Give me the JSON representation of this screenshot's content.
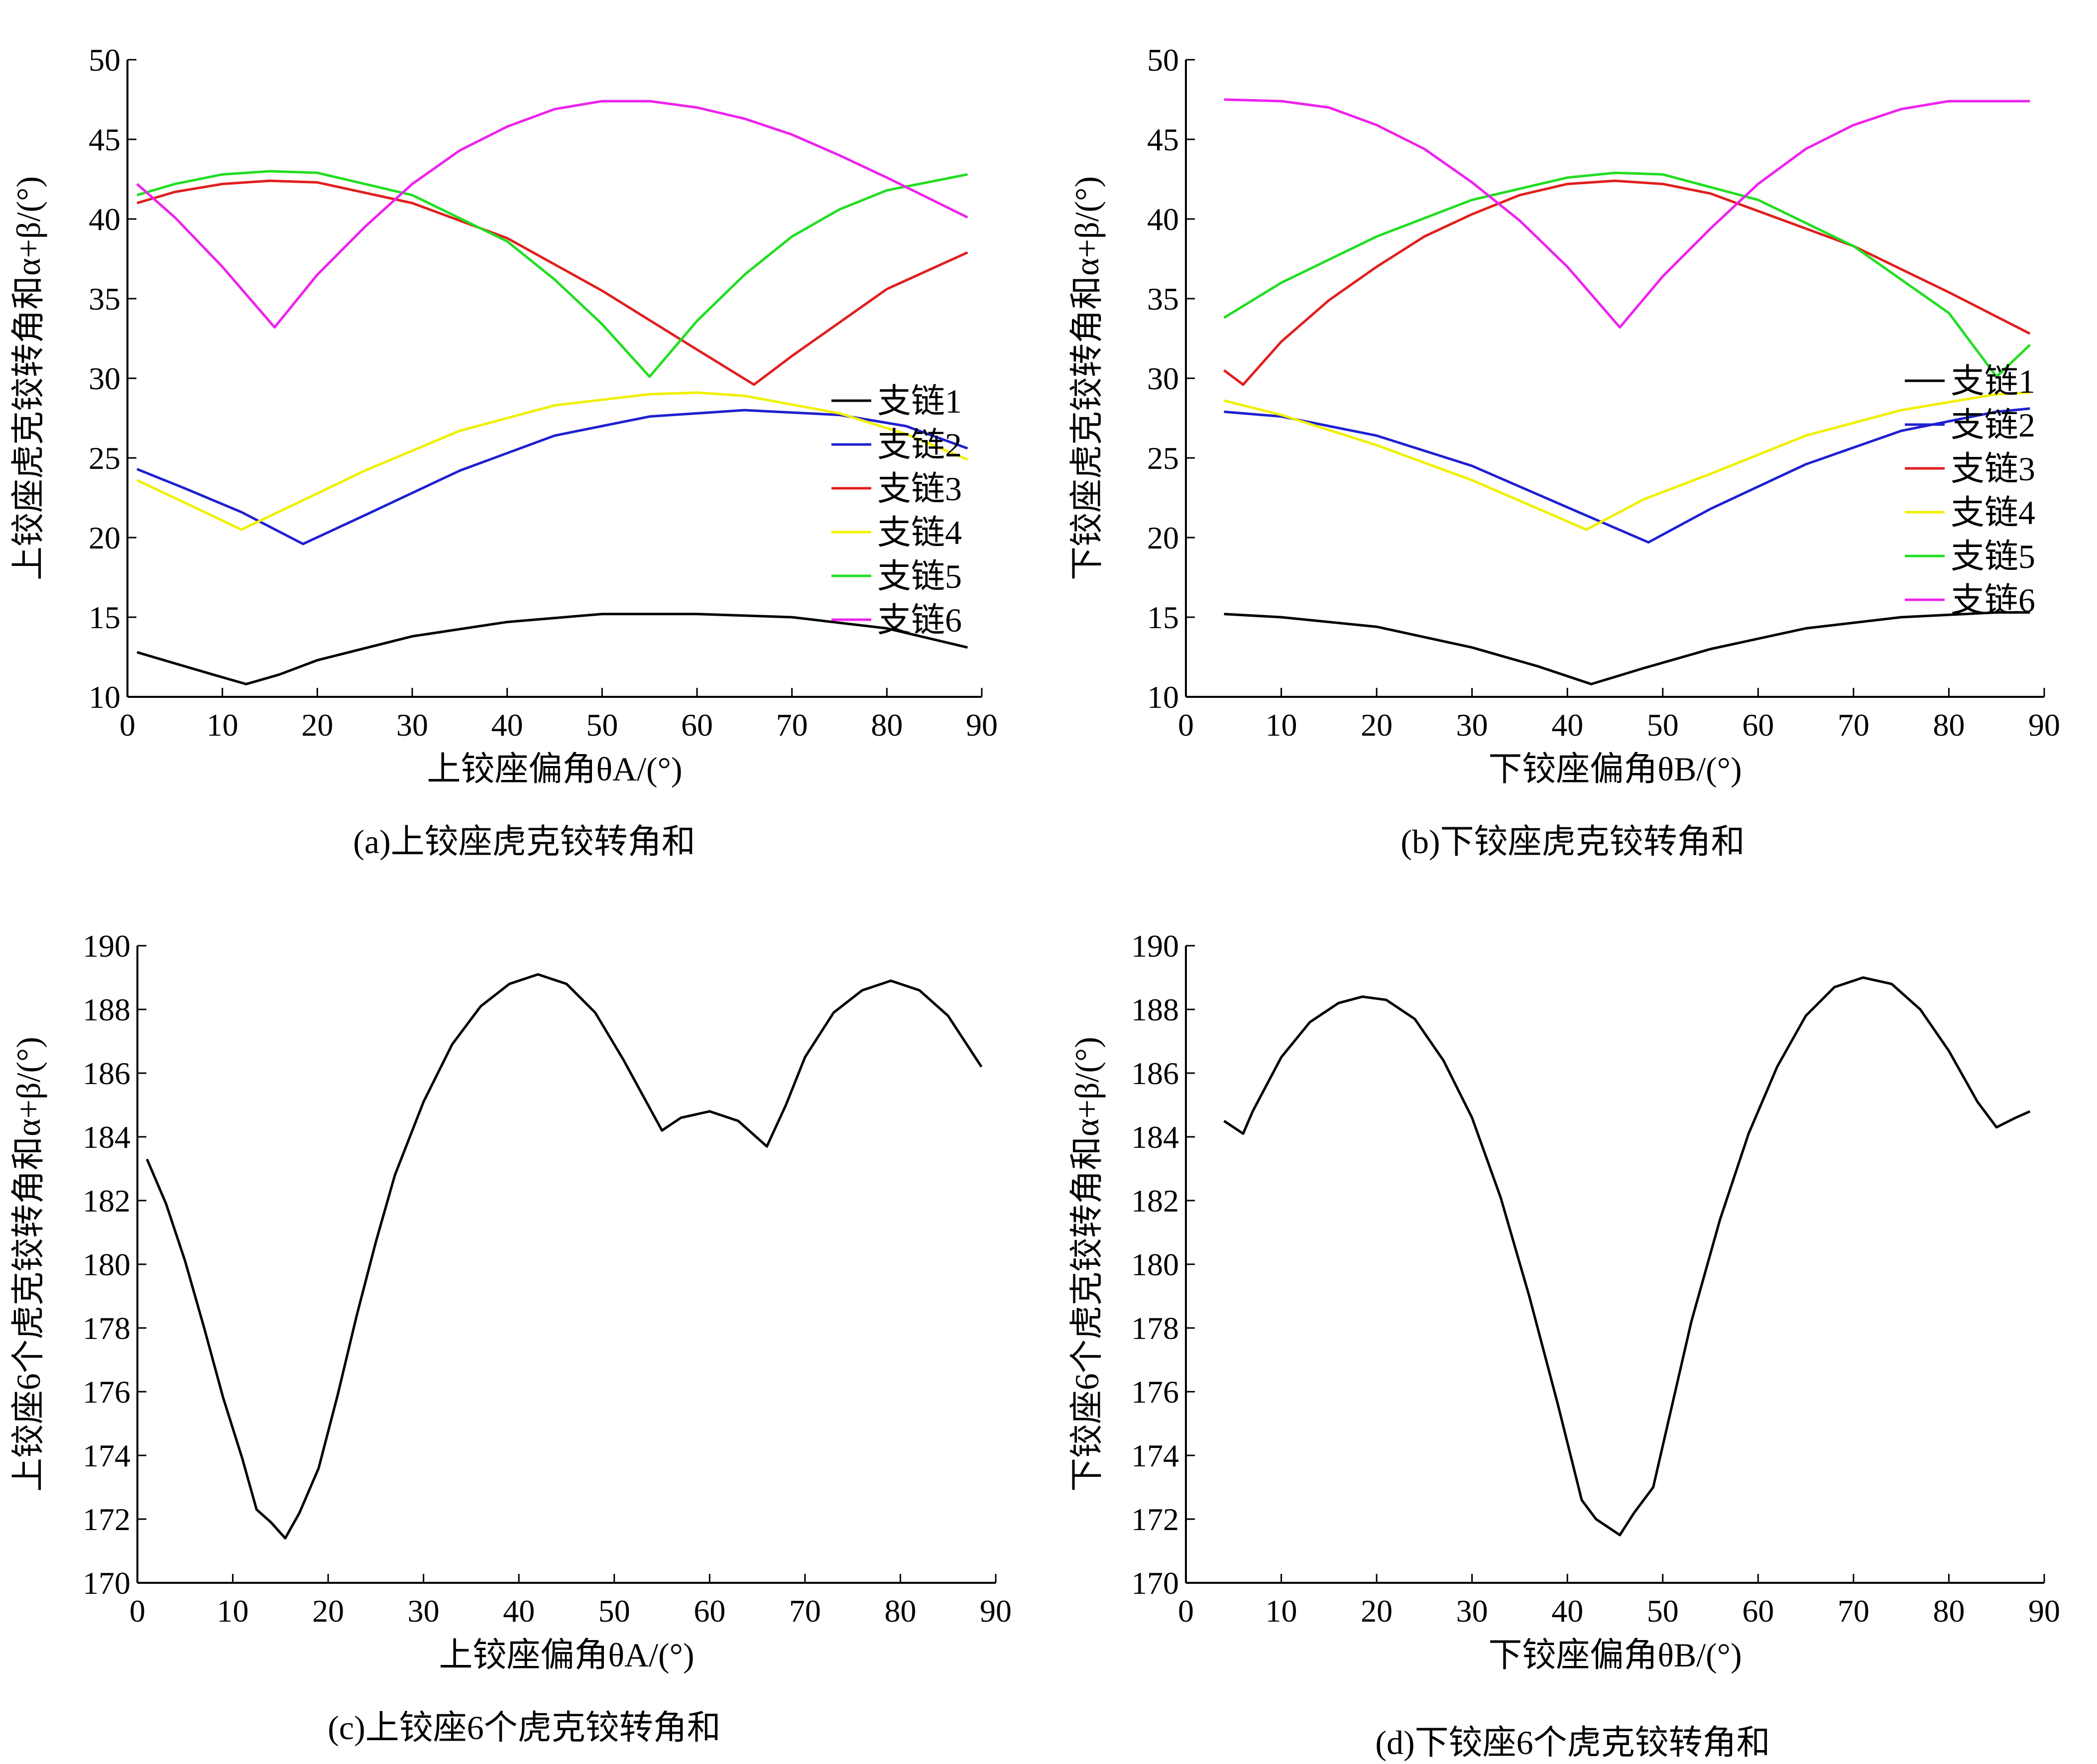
{
  "colors": {
    "axis": "#000000",
    "series": [
      "#000000",
      "#1f1fd0",
      "#e01f1f",
      "#f0f000",
      "#22dd22",
      "#ee22ee"
    ]
  },
  "chart_data": [
    {
      "id": "a",
      "type": "line",
      "caption": "(a)上铰座虎克铰转角和",
      "xlabel": "上铰座偏角θA/(°)",
      "ylabel": "上铰座虎克铰转角和α+β/(°)",
      "xlim": [
        0,
        90
      ],
      "ylim": [
        10,
        50
      ],
      "xticks": [
        0,
        10,
        20,
        30,
        40,
        50,
        60,
        70,
        80,
        90
      ],
      "yticks": [
        10,
        15,
        20,
        25,
        30,
        35,
        40,
        45,
        50
      ],
      "grid": false,
      "legend": "right",
      "series": [
        {
          "name": "支链1",
          "points": [
            [
              1,
              12.8
            ],
            [
              5,
              12.1
            ],
            [
              9,
              11.4
            ],
            [
              12.5,
              10.8
            ],
            [
              16,
              11.4
            ],
            [
              20,
              12.3
            ],
            [
              30,
              13.8
            ],
            [
              40,
              14.7
            ],
            [
              50,
              15.2
            ],
            [
              60,
              15.2
            ],
            [
              70,
              15.0
            ],
            [
              80,
              14.3
            ],
            [
              88.5,
              13.1
            ]
          ]
        },
        {
          "name": "支链2",
          "points": [
            [
              1,
              24.3
            ],
            [
              6,
              23.1
            ],
            [
              12,
              21.6
            ],
            [
              18.5,
              19.6
            ],
            [
              25,
              21.4
            ],
            [
              35,
              24.2
            ],
            [
              45,
              26.4
            ],
            [
              55,
              27.6
            ],
            [
              65,
              28.0
            ],
            [
              75,
              27.7
            ],
            [
              82,
              27.0
            ],
            [
              88.5,
              25.6
            ]
          ]
        },
        {
          "name": "支链3",
          "points": [
            [
              1,
              41.0
            ],
            [
              5,
              41.7
            ],
            [
              10,
              42.2
            ],
            [
              15,
              42.4
            ],
            [
              20,
              42.3
            ],
            [
              30,
              41.0
            ],
            [
              40,
              38.8
            ],
            [
              50,
              35.5
            ],
            [
              60,
              31.8
            ],
            [
              66,
              29.6
            ],
            [
              70,
              31.4
            ],
            [
              75,
              33.5
            ],
            [
              80,
              35.6
            ],
            [
              88.5,
              37.9
            ]
          ]
        },
        {
          "name": "支链4",
          "points": [
            [
              1,
              23.6
            ],
            [
              6,
              22.2
            ],
            [
              12,
              20.5
            ],
            [
              18,
              22.2
            ],
            [
              25,
              24.2
            ],
            [
              35,
              26.7
            ],
            [
              45,
              28.3
            ],
            [
              55,
              29.0
            ],
            [
              60,
              29.1
            ],
            [
              65,
              28.9
            ],
            [
              75,
              27.8
            ],
            [
              82,
              26.5
            ],
            [
              88.5,
              24.9
            ]
          ]
        },
        {
          "name": "支链5",
          "points": [
            [
              1,
              41.5
            ],
            [
              5,
              42.2
            ],
            [
              10,
              42.8
            ],
            [
              15,
              43.0
            ],
            [
              20,
              42.9
            ],
            [
              30,
              41.5
            ],
            [
              40,
              38.6
            ],
            [
              45,
              36.2
            ],
            [
              50,
              33.4
            ],
            [
              55,
              30.1
            ],
            [
              60,
              33.6
            ],
            [
              65,
              36.5
            ],
            [
              70,
              38.9
            ],
            [
              75,
              40.6
            ],
            [
              80,
              41.8
            ],
            [
              88.5,
              42.8
            ]
          ]
        },
        {
          "name": "支链6",
          "points": [
            [
              1,
              42.2
            ],
            [
              5,
              40.1
            ],
            [
              10,
              37.0
            ],
            [
              15.5,
              33.2
            ],
            [
              20,
              36.5
            ],
            [
              25,
              39.5
            ],
            [
              30,
              42.2
            ],
            [
              35,
              44.3
            ],
            [
              40,
              45.8
            ],
            [
              45,
              46.9
            ],
            [
              50,
              47.4
            ],
            [
              55,
              47.4
            ],
            [
              60,
              47.0
            ],
            [
              65,
              46.3
            ],
            [
              70,
              45.3
            ],
            [
              75,
              44.0
            ],
            [
              80,
              42.6
            ],
            [
              88.5,
              40.1
            ]
          ]
        }
      ]
    },
    {
      "id": "b",
      "type": "line",
      "caption": "(b)下铰座虎克铰转角和",
      "xlabel": "下铰座偏角θB/(°)",
      "ylabel": "下铰座虎克铰转角和α+β/(°)",
      "xlim": [
        0,
        90
      ],
      "ylim": [
        10,
        50
      ],
      "xticks": [
        0,
        10,
        20,
        30,
        40,
        50,
        60,
        70,
        80,
        90
      ],
      "yticks": [
        10,
        15,
        20,
        25,
        30,
        35,
        40,
        45,
        50
      ],
      "grid": false,
      "legend": "right",
      "series": [
        {
          "name": "支链1",
          "points": [
            [
              4,
              15.2
            ],
            [
              10,
              15.0
            ],
            [
              20,
              14.4
            ],
            [
              30,
              13.1
            ],
            [
              37,
              11.9
            ],
            [
              42.5,
              10.8
            ],
            [
              48,
              11.8
            ],
            [
              55,
              13.0
            ],
            [
              65,
              14.3
            ],
            [
              75,
              15.0
            ],
            [
              85,
              15.3
            ],
            [
              88.5,
              15.3
            ]
          ]
        },
        {
          "name": "支链2",
          "points": [
            [
              4,
              27.9
            ],
            [
              10,
              27.6
            ],
            [
              20,
              26.4
            ],
            [
              30,
              24.5
            ],
            [
              40,
              21.9
            ],
            [
              48.5,
              19.7
            ],
            [
              55,
              21.8
            ],
            [
              65,
              24.6
            ],
            [
              75,
              26.7
            ],
            [
              85,
              27.9
            ],
            [
              88.5,
              28.1
            ]
          ]
        },
        {
          "name": "支链3",
          "points": [
            [
              4,
              30.5
            ],
            [
              6,
              29.6
            ],
            [
              10,
              32.3
            ],
            [
              15,
              34.9
            ],
            [
              20,
              37.0
            ],
            [
              25,
              38.9
            ],
            [
              30,
              40.3
            ],
            [
              35,
              41.5
            ],
            [
              40,
              42.2
            ],
            [
              45,
              42.4
            ],
            [
              50,
              42.2
            ],
            [
              55,
              41.6
            ],
            [
              60,
              40.5
            ],
            [
              70,
              38.3
            ],
            [
              80,
              35.4
            ],
            [
              88.5,
              32.8
            ]
          ]
        },
        {
          "name": "支链4",
          "points": [
            [
              4,
              28.6
            ],
            [
              10,
              27.7
            ],
            [
              20,
              25.8
            ],
            [
              30,
              23.6
            ],
            [
              42,
              20.5
            ],
            [
              48,
              22.4
            ],
            [
              55,
              24.0
            ],
            [
              65,
              26.4
            ],
            [
              75,
              28.0
            ],
            [
              85,
              29.0
            ],
            [
              88.5,
              29.1
            ]
          ]
        },
        {
          "name": "支链5",
          "points": [
            [
              4,
              33.8
            ],
            [
              10,
              36.0
            ],
            [
              20,
              38.9
            ],
            [
              30,
              41.2
            ],
            [
              40,
              42.6
            ],
            [
              45,
              42.9
            ],
            [
              50,
              42.8
            ],
            [
              60,
              41.2
            ],
            [
              70,
              38.3
            ],
            [
              80,
              34.1
            ],
            [
              85,
              30.1
            ],
            [
              88.5,
              32.1
            ]
          ]
        },
        {
          "name": "支链6",
          "points": [
            [
              4,
              47.5
            ],
            [
              10,
              47.4
            ],
            [
              15,
              47.0
            ],
            [
              20,
              45.9
            ],
            [
              25,
              44.4
            ],
            [
              30,
              42.3
            ],
            [
              35,
              39.9
            ],
            [
              40,
              37.0
            ],
            [
              45.5,
              33.2
            ],
            [
              50,
              36.4
            ],
            [
              55,
              39.4
            ],
            [
              60,
              42.2
            ],
            [
              65,
              44.4
            ],
            [
              70,
              45.9
            ],
            [
              75,
              46.9
            ],
            [
              80,
              47.4
            ],
            [
              88.5,
              47.4
            ]
          ]
        }
      ]
    },
    {
      "id": "c",
      "type": "line",
      "caption": "(c)上铰座6个虎克铰转角和",
      "xlabel": "上铰座偏角θA/(°)",
      "ylabel": "上铰座6个虎克铰转角和α+β/(°)",
      "xlim": [
        0,
        90
      ],
      "ylim": [
        170,
        190
      ],
      "xticks": [
        0,
        10,
        20,
        30,
        40,
        50,
        60,
        70,
        80,
        90
      ],
      "yticks": [
        170,
        172,
        174,
        176,
        178,
        180,
        182,
        184,
        186,
        188,
        190
      ],
      "grid": false,
      "series": [
        {
          "name": "",
          "points": [
            [
              1,
              183.3
            ],
            [
              3,
              181.9
            ],
            [
              5,
              180.1
            ],
            [
              7,
              178.0
            ],
            [
              9,
              175.8
            ],
            [
              11,
              173.9
            ],
            [
              12.5,
              172.3
            ],
            [
              14,
              171.9
            ],
            [
              15.5,
              171.4
            ],
            [
              17,
              172.2
            ],
            [
              19,
              173.6
            ],
            [
              21,
              175.9
            ],
            [
              23,
              178.4
            ],
            [
              25,
              180.7
            ],
            [
              27,
              182.8
            ],
            [
              30,
              185.1
            ],
            [
              33,
              186.9
            ],
            [
              36,
              188.1
            ],
            [
              39,
              188.8
            ],
            [
              42,
              189.1
            ],
            [
              45,
              188.8
            ],
            [
              48,
              187.9
            ],
            [
              51,
              186.4
            ],
            [
              53,
              185.3
            ],
            [
              55,
              184.2
            ],
            [
              57,
              184.6
            ],
            [
              60,
              184.8
            ],
            [
              63,
              184.5
            ],
            [
              66,
              183.7
            ],
            [
              68,
              185.0
            ],
            [
              70,
              186.5
            ],
            [
              73,
              187.9
            ],
            [
              76,
              188.6
            ],
            [
              79,
              188.9
            ],
            [
              82,
              188.6
            ],
            [
              85,
              187.8
            ],
            [
              88.5,
              186.2
            ]
          ]
        }
      ]
    },
    {
      "id": "d",
      "type": "line",
      "caption": "(d)下铰座6个虎克铰转角和",
      "xlabel": "下铰座偏角θB/(°)",
      "ylabel": "下铰座6个虎克铰转角和α+β/(°)",
      "xlim": [
        0,
        90
      ],
      "ylim": [
        170,
        190
      ],
      "xticks": [
        0,
        10,
        20,
        30,
        40,
        50,
        60,
        70,
        80,
        90
      ],
      "yticks": [
        170,
        172,
        174,
        176,
        178,
        180,
        182,
        184,
        186,
        188,
        190
      ],
      "grid": false,
      "series": [
        {
          "name": "",
          "points": [
            [
              4,
              184.5
            ],
            [
              6,
              184.1
            ],
            [
              7,
              184.8
            ],
            [
              10,
              186.5
            ],
            [
              13,
              187.6
            ],
            [
              16,
              188.2
            ],
            [
              18.5,
              188.4
            ],
            [
              21,
              188.3
            ],
            [
              24,
              187.7
            ],
            [
              27,
              186.4
            ],
            [
              30,
              184.6
            ],
            [
              33,
              182.1
            ],
            [
              36,
              179.0
            ],
            [
              39,
              175.6
            ],
            [
              41.5,
              172.6
            ],
            [
              43,
              172.0
            ],
            [
              45.5,
              171.5
            ],
            [
              47,
              172.2
            ],
            [
              49,
              173.0
            ],
            [
              51,
              175.6
            ],
            [
              53,
              178.2
            ],
            [
              56,
              181.4
            ],
            [
              59,
              184.1
            ],
            [
              62,
              186.2
            ],
            [
              65,
              187.8
            ],
            [
              68,
              188.7
            ],
            [
              71,
              189.0
            ],
            [
              74,
              188.8
            ],
            [
              77,
              188.0
            ],
            [
              80,
              186.7
            ],
            [
              83,
              185.1
            ],
            [
              85,
              184.3
            ],
            [
              87,
              184.6
            ],
            [
              88.5,
              184.8
            ]
          ]
        }
      ]
    }
  ]
}
